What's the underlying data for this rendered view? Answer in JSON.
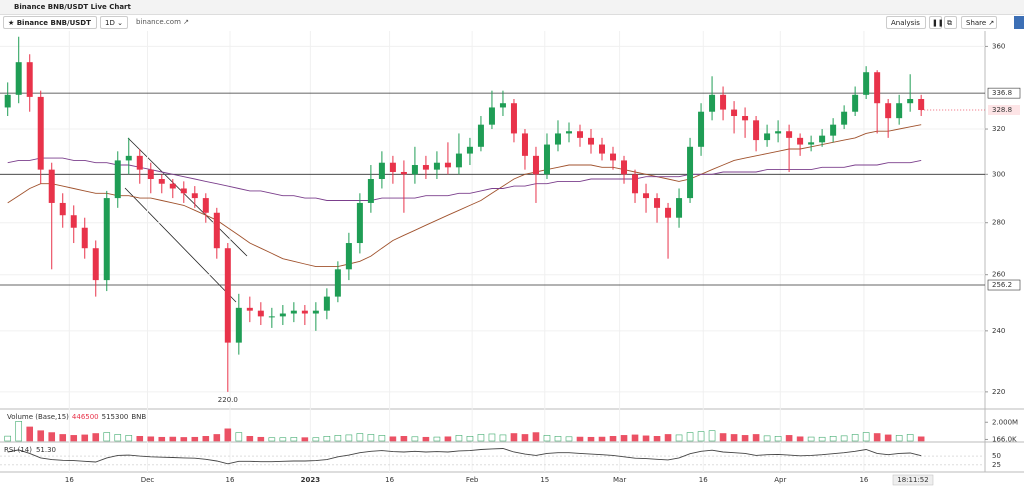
{
  "header": {
    "title": "Binance BNB/USDT Live Chart"
  },
  "toolbar": {
    "symbol": "Binance BNB/USDT",
    "interval": "1D",
    "source": "binance.com",
    "analysis": "Analysis",
    "share": "Share"
  },
  "chart_data": {
    "type": "candlestick",
    "log_scale": true,
    "grid": true,
    "up_color": "#1f9d55",
    "down_color": "#e8334a",
    "xlim": [
      -0.7,
      88.8
    ],
    "xticks": [
      {
        "value": 5.6,
        "label": "16"
      },
      {
        "value": 12.7,
        "label": "Dec"
      },
      {
        "value": 20.2,
        "label": "16"
      },
      {
        "value": 27.5,
        "label": "2023"
      },
      {
        "value": 34.7,
        "label": "16"
      },
      {
        "value": 42.2,
        "label": "Feb"
      },
      {
        "value": 48.8,
        "label": "15"
      },
      {
        "value": 55.6,
        "label": "Mar"
      },
      {
        "value": 63.2,
        "label": "16"
      },
      {
        "value": 70.2,
        "label": "Apr"
      },
      {
        "value": 77.8,
        "label": "16"
      }
    ],
    "cursor_time": "18:11:52",
    "ylim": [
      215,
      368
    ],
    "yticks": [
      360,
      320,
      300,
      280,
      260,
      240,
      220
    ],
    "hlines": [
      336.8,
      300,
      256.2
    ],
    "level_labels": [
      336.8,
      256.2
    ],
    "low_label": "220.0",
    "open": [
      330,
      336,
      352,
      335,
      302,
      288,
      283,
      278,
      270,
      258,
      290,
      306,
      308,
      302,
      298,
      296,
      294,
      292,
      290,
      284,
      270,
      236,
      248,
      247,
      245,
      245,
      246,
      247,
      246,
      247,
      252,
      262,
      272,
      288,
      298,
      305,
      301,
      300,
      304,
      302,
      305,
      303,
      309,
      312,
      322,
      330,
      332,
      318,
      308,
      300,
      313,
      318,
      319,
      316,
      313,
      309,
      306,
      300,
      292,
      290,
      286,
      282,
      290,
      312,
      328,
      336,
      329,
      326,
      324,
      315,
      318,
      319,
      316,
      313,
      314,
      317,
      322,
      328,
      336,
      347,
      332,
      325,
      332,
      334
    ],
    "high": [
      342,
      365,
      356,
      338,
      305,
      292,
      287,
      282,
      273,
      293,
      310,
      316,
      311,
      305,
      300,
      298,
      297,
      295,
      292,
      286,
      272,
      253,
      252,
      250,
      248,
      249,
      250,
      249,
      250,
      255,
      265,
      276,
      292,
      304,
      310,
      308,
      306,
      312,
      308,
      310,
      314,
      318,
      316,
      326,
      338,
      338,
      334,
      320,
      312,
      318,
      324,
      323,
      322,
      320,
      316,
      312,
      308,
      302,
      296,
      292,
      288,
      294,
      316,
      332,
      345,
      340,
      333,
      330,
      326,
      322,
      324,
      322,
      318,
      317,
      320,
      325,
      331,
      340,
      350,
      348,
      334,
      336,
      346,
      336
    ],
    "low": [
      326,
      332,
      328,
      296,
      262,
      278,
      272,
      266,
      252,
      254,
      286,
      300,
      296,
      292,
      292,
      290,
      288,
      286,
      280,
      266,
      220,
      232,
      243,
      242,
      241,
      242,
      243,
      242,
      240,
      244,
      250,
      258,
      268,
      284,
      294,
      296,
      284,
      296,
      298,
      298,
      300,
      300,
      304,
      310,
      320,
      326,
      314,
      302,
      288,
      298,
      310,
      314,
      312,
      309,
      306,
      302,
      296,
      288,
      284,
      280,
      266,
      278,
      288,
      308,
      324,
      324,
      318,
      316,
      310,
      312,
      314,
      301,
      308,
      310,
      312,
      314,
      320,
      326,
      334,
      318,
      316,
      322,
      328,
      326
    ],
    "close": [
      336,
      352,
      335,
      302,
      288,
      283,
      278,
      270,
      258,
      290,
      306,
      308,
      302,
      298,
      296,
      294,
      292,
      290,
      284,
      270,
      236,
      248,
      247,
      245,
      245,
      246,
      247,
      246,
      247,
      252,
      262,
      272,
      288,
      298,
      305,
      301,
      300,
      304,
      302,
      305,
      303,
      309,
      312,
      322,
      330,
      332,
      318,
      308,
      300,
      313,
      318,
      319,
      316,
      313,
      309,
      306,
      300,
      292,
      290,
      286,
      282,
      290,
      312,
      328,
      336,
      329,
      326,
      324,
      315,
      318,
      319,
      316,
      313,
      314,
      317,
      322,
      328,
      336,
      347,
      332,
      325,
      332,
      334,
      328.8
    ],
    "series": [
      {
        "color": "#a0522d",
        "values": [
          288,
          291,
          294,
          296,
          296,
          295,
          294,
          293,
          292,
          292,
          291,
          291,
          290,
          290,
          289,
          288,
          287,
          285,
          283,
          281,
          278,
          275,
          272,
          270,
          268,
          266,
          265,
          264,
          263,
          263,
          263,
          264,
          265,
          267,
          270,
          273,
          275,
          277,
          279,
          281,
          283,
          285,
          287,
          289,
          292,
          295,
          298,
          300,
          301,
          302,
          303,
          304,
          304,
          304,
          303,
          303,
          302,
          301,
          300,
          299,
          298,
          297,
          298,
          300,
          302,
          304,
          306,
          307,
          308,
          309,
          310,
          311,
          311,
          312,
          313,
          314,
          315,
          316,
          318,
          319,
          319,
          320,
          321,
          322
        ]
      },
      {
        "color": "#7b3f8c",
        "values": [
          305,
          306,
          306,
          307,
          307,
          307,
          306,
          306,
          305,
          305,
          304,
          304,
          303,
          302,
          301,
          300,
          299,
          298,
          297,
          296,
          295,
          294,
          293,
          293,
          292,
          291,
          291,
          290,
          290,
          289,
          289,
          289,
          289,
          289,
          290,
          290,
          290,
          290,
          291,
          291,
          291,
          292,
          292,
          293,
          294,
          294,
          295,
          295,
          296,
          296,
          297,
          297,
          297,
          298,
          298,
          298,
          298,
          298,
          299,
          299,
          299,
          299,
          300,
          300,
          300,
          301,
          301,
          301,
          301,
          302,
          302,
          302,
          302,
          302,
          303,
          303,
          303,
          304,
          304,
          304,
          305,
          305,
          305,
          306
        ]
      }
    ],
    "volume": {
      "title": "Volume (Base,15)",
      "legend_values": [
        446500,
        515300
      ],
      "unit": "BNB",
      "ylim": [
        0,
        3200000
      ],
      "yticks": [
        {
          "value": 2000000,
          "label": "2.000M"
        },
        {
          "value": 166000,
          "label": "166.0K"
        }
      ],
      "values": [
        520000,
        2100000,
        1500000,
        1100000,
        900000,
        700000,
        600000,
        650000,
        800000,
        900000,
        700000,
        600000,
        500000,
        450000,
        400000,
        420000,
        380000,
        400000,
        500000,
        700000,
        1300000,
        900000,
        500000,
        400000,
        350000,
        350000,
        380000,
        360000,
        350000,
        500000,
        600000,
        650000,
        800000,
        700000,
        600000,
        450000,
        500000,
        450000,
        400000,
        420000,
        450000,
        600000,
        500000,
        700000,
        750000,
        650000,
        800000,
        700000,
        900000,
        600000,
        500000,
        450000,
        420000,
        400000,
        420000,
        500000,
        600000,
        650000,
        550000,
        500000,
        700000,
        650000,
        900000,
        1000000,
        1100000,
        800000,
        700000,
        600000,
        700000,
        550000,
        500000,
        600000,
        450000,
        420000,
        400000,
        500000,
        550000,
        700000,
        900000,
        800000,
        650000,
        600000,
        700000,
        446500
      ]
    },
    "rsi": {
      "title": "RSI (14)",
      "value_label": "51.30",
      "color": "#444444",
      "ylim": [
        10,
        85
      ],
      "yticks": [
        50,
        25
      ],
      "values": [
        62,
        68,
        58,
        45,
        40,
        38,
        37,
        35,
        33,
        45,
        52,
        53,
        50,
        48,
        47,
        46,
        45,
        44,
        41,
        36,
        28,
        35,
        35,
        34,
        34,
        35,
        36,
        36,
        37,
        40,
        48,
        53,
        60,
        64,
        66,
        63,
        62,
        64,
        62,
        63,
        62,
        65,
        66,
        69,
        71,
        72,
        62,
        56,
        52,
        58,
        60,
        60,
        58,
        56,
        54,
        52,
        48,
        44,
        43,
        41,
        39,
        45,
        57,
        64,
        67,
        62,
        60,
        58,
        52,
        54,
        55,
        53,
        51,
        52,
        54,
        57,
        60,
        64,
        69,
        58,
        54,
        58,
        59,
        51.3
      ]
    }
  }
}
